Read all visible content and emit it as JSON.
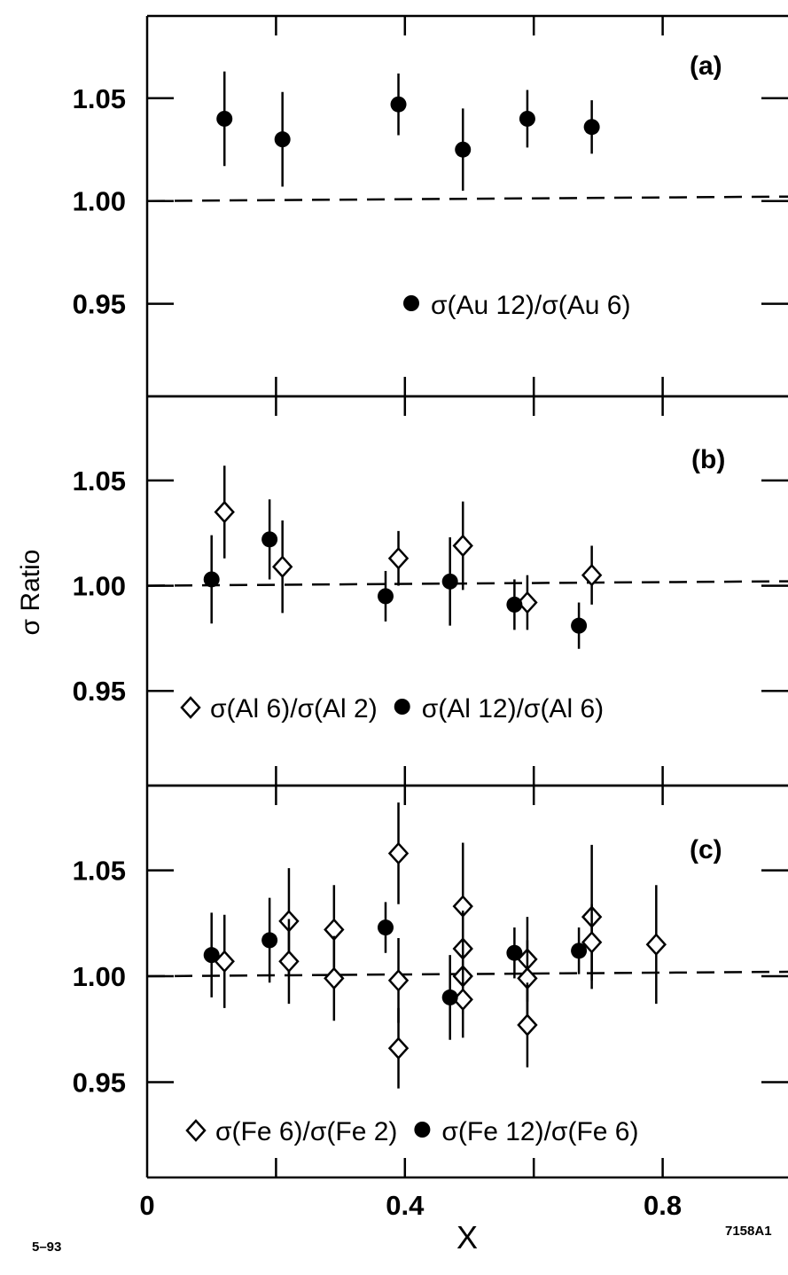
{
  "figure": {
    "left_note": "5–93",
    "right_note": "7158A1"
  },
  "chart_data": [
    {
      "type": "scatter",
      "panel_label": "(a)",
      "xlim": [
        0,
        1.0
      ],
      "ylim": [
        0.905,
        1.09
      ],
      "yticks": [
        {
          "v": 0.95,
          "label": "0.95"
        },
        {
          "v": 1.0,
          "label": "1.00"
        },
        {
          "v": 1.05,
          "label": "1.05"
        }
      ],
      "reference_line": 1.0,
      "legend": [
        {
          "marker": "circle",
          "label": "σ(Au 12)/σ(Au 6)"
        }
      ],
      "series": [
        {
          "marker": "circle",
          "points": [
            {
              "x": 0.12,
              "y": 1.04,
              "err": 0.023
            },
            {
              "x": 0.21,
              "y": 1.03,
              "err": 0.023
            },
            {
              "x": 0.39,
              "y": 1.047,
              "err": 0.015
            },
            {
              "x": 0.49,
              "y": 1.025,
              "err": 0.02
            },
            {
              "x": 0.59,
              "y": 1.04,
              "err": 0.014
            },
            {
              "x": 0.69,
              "y": 1.036,
              "err": 0.013
            }
          ]
        }
      ]
    },
    {
      "type": "scatter",
      "panel_label": "(b)",
      "xlim": [
        0,
        1.0
      ],
      "ylim": [
        0.905,
        1.09
      ],
      "yticks": [
        {
          "v": 0.95,
          "label": "0.95"
        },
        {
          "v": 1.0,
          "label": "1.00"
        },
        {
          "v": 1.05,
          "label": "1.05"
        }
      ],
      "reference_line": 1.0,
      "legend": [
        {
          "marker": "diamond",
          "label": "σ(Al 6)/σ(Al 2)"
        },
        {
          "marker": "circle",
          "label": "σ(Al 12)/σ(Al 6)"
        }
      ],
      "series": [
        {
          "marker": "diamond",
          "points": [
            {
              "x": 0.12,
              "y": 1.035,
              "err": 0.022
            },
            {
              "x": 0.21,
              "y": 1.009,
              "err": 0.022
            },
            {
              "x": 0.39,
              "y": 1.013,
              "err": 0.013
            },
            {
              "x": 0.49,
              "y": 1.019,
              "err": 0.021
            },
            {
              "x": 0.59,
              "y": 0.992,
              "err": 0.013
            },
            {
              "x": 0.69,
              "y": 1.005,
              "err": 0.014
            }
          ]
        },
        {
          "marker": "circle",
          "points": [
            {
              "x": 0.1,
              "y": 1.003,
              "err": 0.021
            },
            {
              "x": 0.19,
              "y": 1.022,
              "err": 0.019
            },
            {
              "x": 0.37,
              "y": 0.995,
              "err": 0.012
            },
            {
              "x": 0.47,
              "y": 1.002,
              "err": 0.021
            },
            {
              "x": 0.57,
              "y": 0.991,
              "err": 0.012
            },
            {
              "x": 0.67,
              "y": 0.981,
              "err": 0.011
            }
          ]
        }
      ]
    },
    {
      "type": "scatter",
      "panel_label": "(c)",
      "xlim": [
        0,
        1.0
      ],
      "ylim": [
        0.905,
        1.09
      ],
      "yticks": [
        {
          "v": 0.95,
          "label": "0.95"
        },
        {
          "v": 1.0,
          "label": "1.00"
        },
        {
          "v": 1.05,
          "label": "1.05"
        }
      ],
      "xticks": [
        {
          "v": 0,
          "label": "0"
        },
        {
          "v": 0.4,
          "label": "0.4"
        },
        {
          "v": 0.8,
          "label": "0.8"
        }
      ],
      "reference_line": 1.0,
      "xlabel": "X",
      "legend": [
        {
          "marker": "diamond",
          "label": "σ(Fe 6)/σ(Fe 2)"
        },
        {
          "marker": "circle",
          "label": "σ(Fe 12)/σ(Fe 6)"
        }
      ],
      "series": [
        {
          "marker": "diamond",
          "points": [
            {
              "x": 0.12,
              "y": 1.007,
              "err": 0.022
            },
            {
              "x": 0.22,
              "y": 1.026,
              "err": 0.025
            },
            {
              "x": 0.22,
              "y": 1.007,
              "err": 0.02
            },
            {
              "x": 0.29,
              "y": 1.022,
              "err": 0.021
            },
            {
              "x": 0.29,
              "y": 0.999,
              "err": 0.02
            },
            {
              "x": 0.39,
              "y": 1.058,
              "err": 0.024
            },
            {
              "x": 0.39,
              "y": 0.998,
              "err": 0.02
            },
            {
              "x": 0.39,
              "y": 0.966,
              "err": 0.019
            },
            {
              "x": 0.49,
              "y": 1.033,
              "err": 0.03
            },
            {
              "x": 0.49,
              "y": 1.013,
              "err": 0.018
            },
            {
              "x": 0.49,
              "y": 1.0,
              "err": 0.018
            },
            {
              "x": 0.49,
              "y": 0.989,
              "err": 0.018
            },
            {
              "x": 0.59,
              "y": 1.008,
              "err": 0.02
            },
            {
              "x": 0.59,
              "y": 0.999,
              "err": 0.018
            },
            {
              "x": 0.59,
              "y": 0.977,
              "err": 0.02
            },
            {
              "x": 0.69,
              "y": 1.028,
              "err": 0.034
            },
            {
              "x": 0.69,
              "y": 1.016,
              "err": 0.018
            },
            {
              "x": 0.79,
              "y": 1.015,
              "err": 0.028
            }
          ]
        },
        {
          "marker": "circle",
          "points": [
            {
              "x": 0.1,
              "y": 1.01,
              "err": 0.02
            },
            {
              "x": 0.19,
              "y": 1.017,
              "err": 0.02
            },
            {
              "x": 0.37,
              "y": 1.023,
              "err": 0.012
            },
            {
              "x": 0.47,
              "y": 0.99,
              "err": 0.02
            },
            {
              "x": 0.57,
              "y": 1.011,
              "err": 0.012
            },
            {
              "x": 0.67,
              "y": 1.012,
              "err": 0.011
            }
          ]
        }
      ]
    }
  ],
  "y_axis_label": "σ Ratio"
}
